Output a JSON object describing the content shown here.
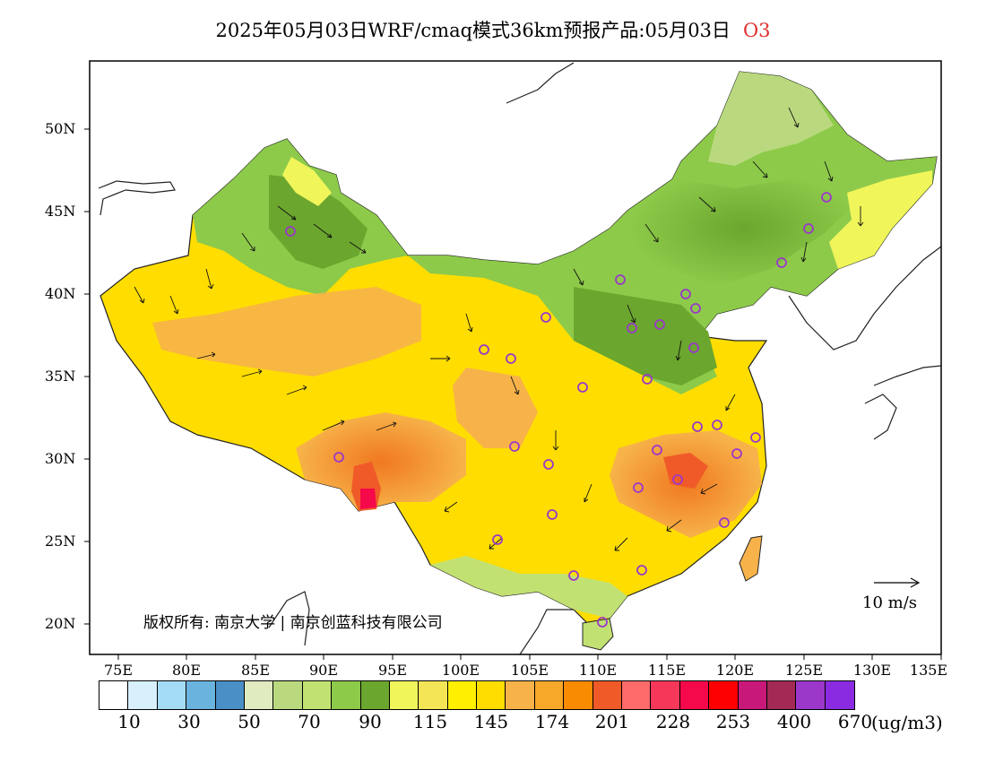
{
  "title": {
    "text": "2025年05月03日WRF/cmaq模式36km预报产品:05月03日",
    "species": "O3"
  },
  "axes": {
    "lat_labels": [
      "50N",
      "45N",
      "40N",
      "35N",
      "30N",
      "25N",
      "20N"
    ],
    "lon_labels": [
      "75E",
      "80E",
      "85E",
      "90E",
      "95E",
      "100E",
      "105E",
      "110E",
      "115E",
      "120E",
      "125E",
      "130E",
      "135E"
    ]
  },
  "colorbar": {
    "colors": [
      "#ffffff",
      "#d8f0fb",
      "#a3dcf4",
      "#6bb3df",
      "#4a8fc6",
      "#e0ecc0",
      "#bad97f",
      "#c2e173",
      "#8dca4a",
      "#6ba62e",
      "#f0f55a",
      "#f4e556",
      "#ffef00",
      "#ffdd00",
      "#f7b34a",
      "#f7a829",
      "#f98b00",
      "#f05a28",
      "#ff6a6a",
      "#f5375a",
      "#f5094b",
      "#ff0000",
      "#c8187a",
      "#a32a55",
      "#9b38c9",
      "#8a2be2"
    ],
    "labels": [
      "10",
      "30",
      "50",
      "70",
      "90",
      "115",
      "145",
      "174",
      "201",
      "228",
      "253",
      "400",
      "670"
    ],
    "unit": "(ug/m3)"
  },
  "copyright": "版权所有: 南京大学 | 南京创蓝科技有限公司",
  "wind_reference": "10 m/s"
}
